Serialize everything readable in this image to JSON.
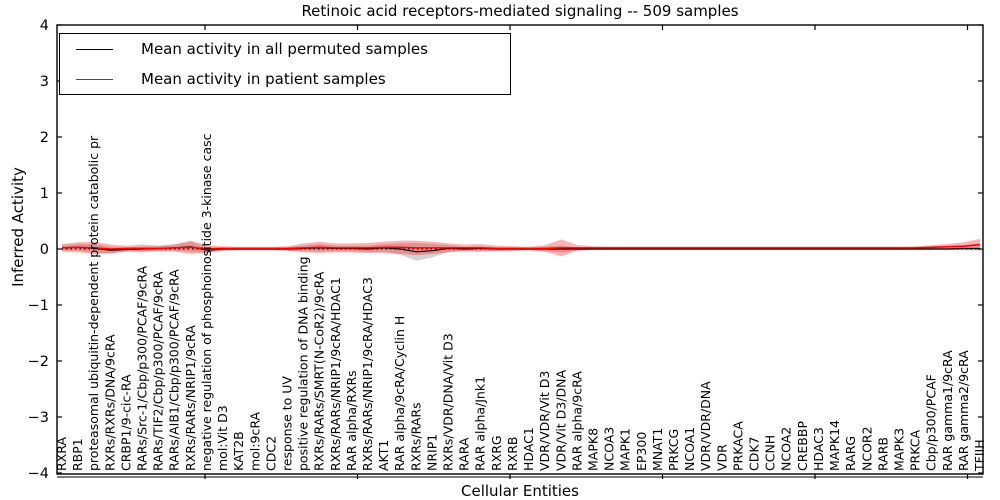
{
  "title": "Retinoic acid receptors-mediated signaling -- 509 samples",
  "legend": {
    "permuted_label": "Mean activity in all permuted samples",
    "patient_label": "Mean activity in patient samples"
  },
  "colors": {
    "permuted_line": "#000000",
    "patient_line": "#ff0000",
    "permuted_band": "rgba(128,128,128,0.35)",
    "patient_band": "rgba(255,0,0,0.30)",
    "frame": "#000000"
  },
  "chart_data": {
    "type": "line",
    "title": "Retinoic acid receptors-mediated signaling -- 509 samples",
    "xlabel": "Cellular Entities",
    "ylabel": "Inferred Activity",
    "ylim": [
      -4,
      4
    ],
    "yticks": [
      4,
      3,
      2,
      1,
      0,
      -1,
      -2,
      -3,
      -4
    ],
    "ytick_labels": [
      "4",
      "3",
      "2",
      "1",
      "0",
      "−1",
      "−2",
      "−3",
      "−4"
    ],
    "zero_line": "dotted",
    "grid": false,
    "legend_position": "upper left",
    "categories": [
      "RXRA",
      "RBP1",
      "proteasomal ubiquitin-dependent protein catabolic pr",
      "RXRs/RXRs/DNA/9cRA",
      "CRBP1/9-cic-RA",
      "RARs/Src-1/Cbp/p300/PCAF/9cRA",
      "RARs/TIF2/Cbp/p300/PCAF/9cRA",
      "RARs/AIB1/Cbp/p300/PCAF/9cRA",
      "RXRs/RARs/NRIP1/9cRA",
      "negative regulation of phosphoinositide 3-kinase casc",
      "mol:Vit D3",
      "KAT2B",
      "mol:9cRA",
      "CDC2",
      "response to UV",
      "positive regulation of DNA binding",
      "RXRs/RARs/SMRT(N-CoR2)/9cRA",
      "RXRs/RARs/NRIP1/9cRA/HDAC1",
      "RAR alpha/RXRs",
      "RXRs/RARs/NRIP1/9cRA/HDAC3",
      "AKT1",
      "RAR alpha/9cRA/Cyclin H",
      "RXRs/RARs",
      "NRIP1",
      "RXRs/VDR/DNA/Vit D3",
      "RARA",
      "RAR alpha/Jnk1",
      "RXRG",
      "RXRB",
      "HDAC1",
      "VDR/VDR/Vit D3",
      "VDR/Vit D3/DNA",
      "RAR alpha/9cRA",
      "MAPK8",
      "NCOA3",
      "MAPK1",
      "EP300",
      "MNAT1",
      "PRKCG",
      "NCOA1",
      "VDR/VDR/DNA",
      "VDR",
      "PRKACA",
      "CDK7",
      "CCNH",
      "NCOA2",
      "CREBBP",
      "HDAC3",
      "MAPK14",
      "RARG",
      "NCOR2",
      "RARB",
      "MAPK3",
      "PRKCA",
      "Cbp/p300/PCAF",
      "RAR gamma1/9cRA",
      "RAR gamma2/9cRA",
      "TFIIH"
    ],
    "series": [
      {
        "name": "Mean activity in all permuted samples",
        "color": "#000000",
        "values": [
          0.02,
          0.03,
          0.01,
          -0.02,
          -0.01,
          0.0,
          0.01,
          0.02,
          0.04,
          -0.02,
          0.0,
          0.0,
          0.0,
          0.0,
          0.0,
          0.01,
          0.02,
          0.01,
          0.01,
          0.0,
          0.02,
          0.0,
          -0.05,
          -0.03,
          0.01,
          0.0,
          0.01,
          0.0,
          0.0,
          0.0,
          0.0,
          0.0,
          0.0,
          0.0,
          0.0,
          0.0,
          0.0,
          0.0,
          0.0,
          0.0,
          0.0,
          0.0,
          0.0,
          0.0,
          0.0,
          0.0,
          0.0,
          0.0,
          0.0,
          0.0,
          0.0,
          0.0,
          0.0,
          0.0,
          0.0,
          0.0,
          0.01,
          0.01
        ],
        "band": [
          0.05,
          0.06,
          0.08,
          0.06,
          0.04,
          0.04,
          0.04,
          0.05,
          0.09,
          0.05,
          0.03,
          0.02,
          0.02,
          0.02,
          0.03,
          0.05,
          0.07,
          0.05,
          0.05,
          0.06,
          0.07,
          0.1,
          0.16,
          0.12,
          0.06,
          0.04,
          0.04,
          0.03,
          0.03,
          0.02,
          0.04,
          0.06,
          0.03,
          0.02,
          0.015,
          0.015,
          0.015,
          0.015,
          0.015,
          0.015,
          0.015,
          0.015,
          0.015,
          0.015,
          0.015,
          0.015,
          0.015,
          0.015,
          0.015,
          0.015,
          0.015,
          0.015,
          0.015,
          0.015,
          0.02,
          0.02,
          0.03,
          0.04
        ]
      },
      {
        "name": "Mean activity in patient samples",
        "color": "#ff0000",
        "values": [
          0.02,
          0.03,
          0.02,
          0.0,
          0.01,
          0.01,
          0.01,
          0.02,
          0.03,
          0.0,
          0.01,
          0.01,
          0.01,
          0.01,
          0.01,
          0.02,
          0.03,
          0.02,
          0.02,
          0.02,
          0.03,
          0.03,
          0.02,
          0.02,
          0.02,
          0.02,
          0.02,
          0.01,
          0.01,
          0.01,
          0.01,
          0.02,
          0.02,
          0.02,
          0.02,
          0.02,
          0.02,
          0.02,
          0.02,
          0.02,
          0.02,
          0.02,
          0.02,
          0.02,
          0.02,
          0.02,
          0.02,
          0.02,
          0.02,
          0.02,
          0.02,
          0.02,
          0.02,
          0.02,
          0.03,
          0.04,
          0.05,
          0.08
        ],
        "band": [
          0.07,
          0.09,
          0.11,
          0.08,
          0.05,
          0.07,
          0.05,
          0.07,
          0.12,
          0.07,
          0.04,
          0.03,
          0.03,
          0.03,
          0.04,
          0.08,
          0.1,
          0.08,
          0.08,
          0.09,
          0.1,
          0.12,
          0.13,
          0.11,
          0.08,
          0.06,
          0.07,
          0.05,
          0.04,
          0.03,
          0.06,
          0.15,
          0.05,
          0.03,
          0.025,
          0.025,
          0.025,
          0.025,
          0.025,
          0.025,
          0.025,
          0.025,
          0.025,
          0.025,
          0.025,
          0.025,
          0.025,
          0.025,
          0.025,
          0.025,
          0.025,
          0.025,
          0.025,
          0.03,
          0.04,
          0.05,
          0.07,
          0.1
        ]
      }
    ]
  }
}
